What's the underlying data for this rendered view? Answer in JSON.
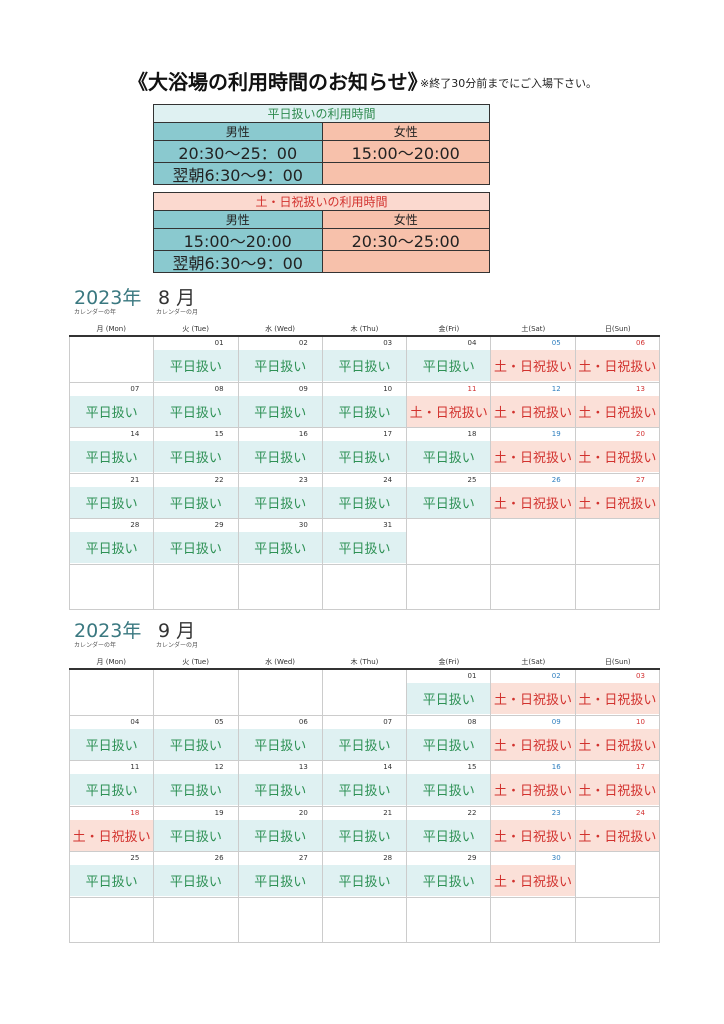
{
  "title": {
    "main": "《大浴場の利用時間のお知らせ》",
    "note": "※終了30分前までにご入場下さい。"
  },
  "weekday_table": {
    "header": "平日扱いの利用時間",
    "male_label": "男性",
    "female_label": "女性",
    "male_time1": "20:30～25：00",
    "female_time1": "15:00～20:00",
    "male_time2": "翌朝6:30～9：00",
    "female_time2": ""
  },
  "weekend_table": {
    "header": "土・日祝扱いの利用時間",
    "male_label": "男性",
    "female_label": "女性",
    "male_time1": "15:00～20:00",
    "female_time1": "20:30～25:00",
    "male_time2": "翌朝6:30～9：00",
    "female_time2": ""
  },
  "day_headers": [
    "月 (Mon)",
    "火 (Tue)",
    "水 (Wed)",
    "木 (Thu)",
    "金(Fri)",
    "土(Sat)",
    "日(Sun)"
  ],
  "labels": {
    "weekday": "平日扱い",
    "weekend": "土・日祝扱い"
  },
  "calendars": [
    {
      "year": "2023年",
      "month": "8 月",
      "year_sub": "カレンダーの年",
      "month_sub": "カレンダーの月",
      "weeks": [
        [
          null,
          {
            "d": "01",
            "t": "weekday"
          },
          {
            "d": "02",
            "t": "weekday"
          },
          {
            "d": "03",
            "t": "weekday"
          },
          {
            "d": "04",
            "t": "weekday"
          },
          {
            "d": "05",
            "t": "weekend"
          },
          {
            "d": "06",
            "t": "weekend"
          }
        ],
        [
          {
            "d": "07",
            "t": "weekday"
          },
          {
            "d": "08",
            "t": "weekday"
          },
          {
            "d": "09",
            "t": "weekday"
          },
          {
            "d": "10",
            "t": "weekday"
          },
          {
            "d": "11",
            "t": "weekend",
            "h": true
          },
          {
            "d": "12",
            "t": "weekend"
          },
          {
            "d": "13",
            "t": "weekend"
          }
        ],
        [
          {
            "d": "14",
            "t": "weekday"
          },
          {
            "d": "15",
            "t": "weekday"
          },
          {
            "d": "16",
            "t": "weekday"
          },
          {
            "d": "17",
            "t": "weekday"
          },
          {
            "d": "18",
            "t": "weekday"
          },
          {
            "d": "19",
            "t": "weekend"
          },
          {
            "d": "20",
            "t": "weekend"
          }
        ],
        [
          {
            "d": "21",
            "t": "weekday"
          },
          {
            "d": "22",
            "t": "weekday"
          },
          {
            "d": "23",
            "t": "weekday"
          },
          {
            "d": "24",
            "t": "weekday"
          },
          {
            "d": "25",
            "t": "weekday"
          },
          {
            "d": "26",
            "t": "weekend"
          },
          {
            "d": "27",
            "t": "weekend"
          }
        ],
        [
          {
            "d": "28",
            "t": "weekday"
          },
          {
            "d": "29",
            "t": "weekday"
          },
          {
            "d": "30",
            "t": "weekday"
          },
          {
            "d": "31",
            "t": "weekday"
          },
          null,
          null,
          null
        ],
        [
          null,
          null,
          null,
          null,
          null,
          null,
          null
        ]
      ]
    },
    {
      "year": "2023年",
      "month": "9 月",
      "year_sub": "カレンダーの年",
      "month_sub": "カレンダーの月",
      "weeks": [
        [
          null,
          null,
          null,
          null,
          {
            "d": "01",
            "t": "weekday"
          },
          {
            "d": "02",
            "t": "weekend"
          },
          {
            "d": "03",
            "t": "weekend"
          }
        ],
        [
          {
            "d": "04",
            "t": "weekday"
          },
          {
            "d": "05",
            "t": "weekday"
          },
          {
            "d": "06",
            "t": "weekday"
          },
          {
            "d": "07",
            "t": "weekday"
          },
          {
            "d": "08",
            "t": "weekday"
          },
          {
            "d": "09",
            "t": "weekend"
          },
          {
            "d": "10",
            "t": "weekend"
          }
        ],
        [
          {
            "d": "11",
            "t": "weekday"
          },
          {
            "d": "12",
            "t": "weekday"
          },
          {
            "d": "13",
            "t": "weekday"
          },
          {
            "d": "14",
            "t": "weekday"
          },
          {
            "d": "15",
            "t": "weekday"
          },
          {
            "d": "16",
            "t": "weekend"
          },
          {
            "d": "17",
            "t": "weekend"
          }
        ],
        [
          {
            "d": "18",
            "t": "weekend",
            "h": true
          },
          {
            "d": "19",
            "t": "weekday"
          },
          {
            "d": "20",
            "t": "weekday"
          },
          {
            "d": "21",
            "t": "weekday"
          },
          {
            "d": "22",
            "t": "weekday"
          },
          {
            "d": "23",
            "t": "weekend"
          },
          {
            "d": "24",
            "t": "weekend"
          }
        ],
        [
          {
            "d": "25",
            "t": "weekday"
          },
          {
            "d": "26",
            "t": "weekday"
          },
          {
            "d": "27",
            "t": "weekday"
          },
          {
            "d": "28",
            "t": "weekday"
          },
          {
            "d": "29",
            "t": "weekday"
          },
          {
            "d": "30",
            "t": "weekend"
          },
          null
        ],
        [
          null,
          null,
          null,
          null,
          null,
          null,
          null
        ]
      ]
    }
  ]
}
